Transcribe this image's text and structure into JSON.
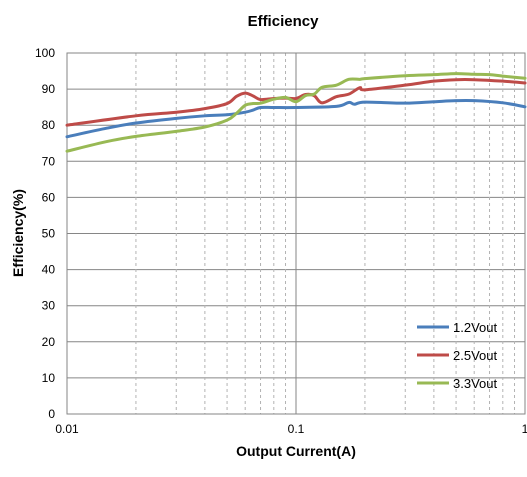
{
  "chart_data": {
    "type": "line",
    "title": "Efficiency",
    "xlabel": "Output Current(A)",
    "ylabel": "Efficiency(%)",
    "x_scale": "log",
    "xlim": [
      0.01,
      1
    ],
    "ylim": [
      0,
      100
    ],
    "x_ticks": [
      "0.01",
      "0.1",
      "1"
    ],
    "y_ticks": [
      "0",
      "10",
      "20",
      "30",
      "40",
      "50",
      "60",
      "70",
      "80",
      "90",
      "100"
    ],
    "grid": true,
    "legend_position": "bottom-right",
    "series": [
      {
        "name": "1.2Vout",
        "color": "#4a7ebb",
        "x": [
          0.01,
          0.015,
          0.02,
          0.03,
          0.04,
          0.05,
          0.06,
          0.065,
          0.07,
          0.08,
          0.1,
          0.15,
          0.17,
          0.18,
          0.2,
          0.3,
          0.4,
          0.5,
          0.6,
          0.8,
          1.0
        ],
        "y": [
          76.8,
          79.2,
          80.6,
          81.9,
          82.6,
          82.9,
          83.6,
          84.2,
          84.9,
          84.9,
          84.9,
          85.2,
          86.3,
          85.8,
          86.4,
          86.1,
          86.5,
          86.8,
          86.8,
          86.2,
          85.1
        ]
      },
      {
        "name": "2.5Vout",
        "color": "#be4b48",
        "x": [
          0.01,
          0.02,
          0.03,
          0.04,
          0.05,
          0.055,
          0.06,
          0.065,
          0.07,
          0.08,
          0.09,
          0.1,
          0.11,
          0.12,
          0.13,
          0.15,
          0.17,
          0.19,
          0.2,
          0.3,
          0.4,
          0.5,
          0.6,
          0.8,
          1.0
        ],
        "y": [
          80.0,
          82.6,
          83.6,
          84.6,
          86.0,
          88.0,
          88.9,
          88.1,
          87.1,
          87.4,
          87.5,
          87.4,
          88.5,
          88.2,
          86.2,
          87.9,
          88.6,
          90.4,
          89.8,
          91.1,
          92.2,
          92.6,
          92.6,
          92.2,
          91.7
        ]
      },
      {
        "name": "3.3Vout",
        "color": "#98b954",
        "x": [
          0.01,
          0.015,
          0.02,
          0.03,
          0.04,
          0.05,
          0.055,
          0.06,
          0.065,
          0.07,
          0.08,
          0.09,
          0.1,
          0.11,
          0.12,
          0.13,
          0.15,
          0.17,
          0.19,
          0.2,
          0.3,
          0.4,
          0.5,
          0.6,
          0.7,
          0.8,
          1.0
        ],
        "y": [
          72.8,
          75.5,
          76.9,
          78.3,
          79.5,
          81.4,
          83.3,
          85.5,
          86.0,
          86.1,
          87.2,
          87.7,
          86.5,
          88.2,
          88.6,
          90.5,
          91.1,
          92.7,
          92.7,
          92.9,
          93.7,
          94.0,
          94.3,
          94.1,
          94.0,
          93.6,
          93.0
        ]
      }
    ]
  }
}
